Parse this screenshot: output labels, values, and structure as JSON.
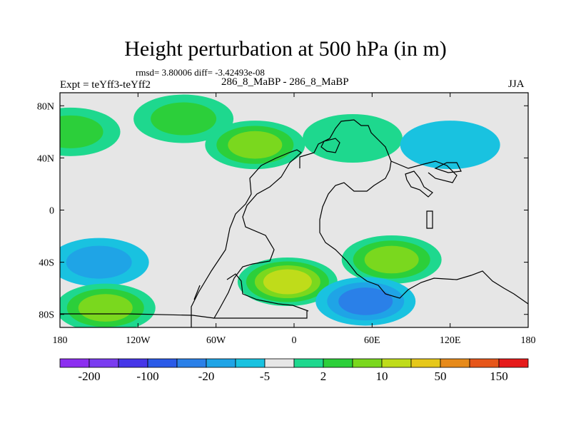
{
  "figure": {
    "title": "Height perturbation at 500 hPa (in m)",
    "subtitle": "rmsd= 3.80006 diff= -3.42493e-08",
    "left_label": "Expt = teYff3-teYff2",
    "center_label": "286_8_MaBP - 286_8_MaBP",
    "right_label": "JJA"
  },
  "map": {
    "type": "filled-contour",
    "variable": "500 hPa geopotential height perturbation",
    "units": "m",
    "lon_range": [
      -180,
      180
    ],
    "lat_range": [
      -90,
      90
    ],
    "lon_ticks": [
      {
        "value": -180,
        "label": "180"
      },
      {
        "value": -120,
        "label": "120W"
      },
      {
        "value": -60,
        "label": "60W"
      },
      {
        "value": 0,
        "label": "0"
      },
      {
        "value": 60,
        "label": "60E"
      },
      {
        "value": 120,
        "label": "120E"
      },
      {
        "value": 180,
        "label": "180"
      }
    ],
    "lat_ticks": [
      {
        "value": 80,
        "label": "80N"
      },
      {
        "value": 40,
        "label": "40N"
      },
      {
        "value": 0,
        "label": "0"
      },
      {
        "value": -40,
        "label": "40S"
      },
      {
        "value": -80,
        "label": "80S"
      }
    ],
    "colorbar": {
      "colors": [
        "#8c2ef0",
        "#7a3cf0",
        "#4636e8",
        "#2a5ae8",
        "#2a80e8",
        "#1fa4e6",
        "#19c2e0",
        "#e6e6e6",
        "#1ed88e",
        "#2ccf3a",
        "#7ad81e",
        "#bfdc1a",
        "#e6c81a",
        "#e68a1a",
        "#e6561a",
        "#e61a1a"
      ],
      "labels": [
        "-200",
        "-100",
        "-20",
        "-5",
        "2",
        "10",
        "50",
        "150"
      ]
    },
    "features": [
      {
        "name": "north-pacific-west-positive",
        "lon": -172,
        "lat": 60,
        "level": 9
      },
      {
        "name": "north-pacific-positive",
        "lon": -85,
        "lat": 70,
        "level": 9
      },
      {
        "name": "north-america-positive",
        "lon": -30,
        "lat": 50,
        "level": 10
      },
      {
        "name": "north-atlantic-positive",
        "lon": 45,
        "lat": 55,
        "level": 8
      },
      {
        "name": "siberia-negative",
        "lon": 120,
        "lat": 50,
        "level": 6
      },
      {
        "name": "southern-pacific-negative",
        "lon": -150,
        "lat": -40,
        "level": 5
      },
      {
        "name": "southern-ocean-positive",
        "lon": -145,
        "lat": -75,
        "level": 10
      },
      {
        "name": "south-atlantic-positive",
        "lon": -5,
        "lat": -55,
        "level": 11
      },
      {
        "name": "indian-ocean-positive",
        "lon": 75,
        "lat": -38,
        "level": 10
      },
      {
        "name": "antarctic-negative",
        "lon": 55,
        "lat": -70,
        "level": 4
      }
    ]
  }
}
